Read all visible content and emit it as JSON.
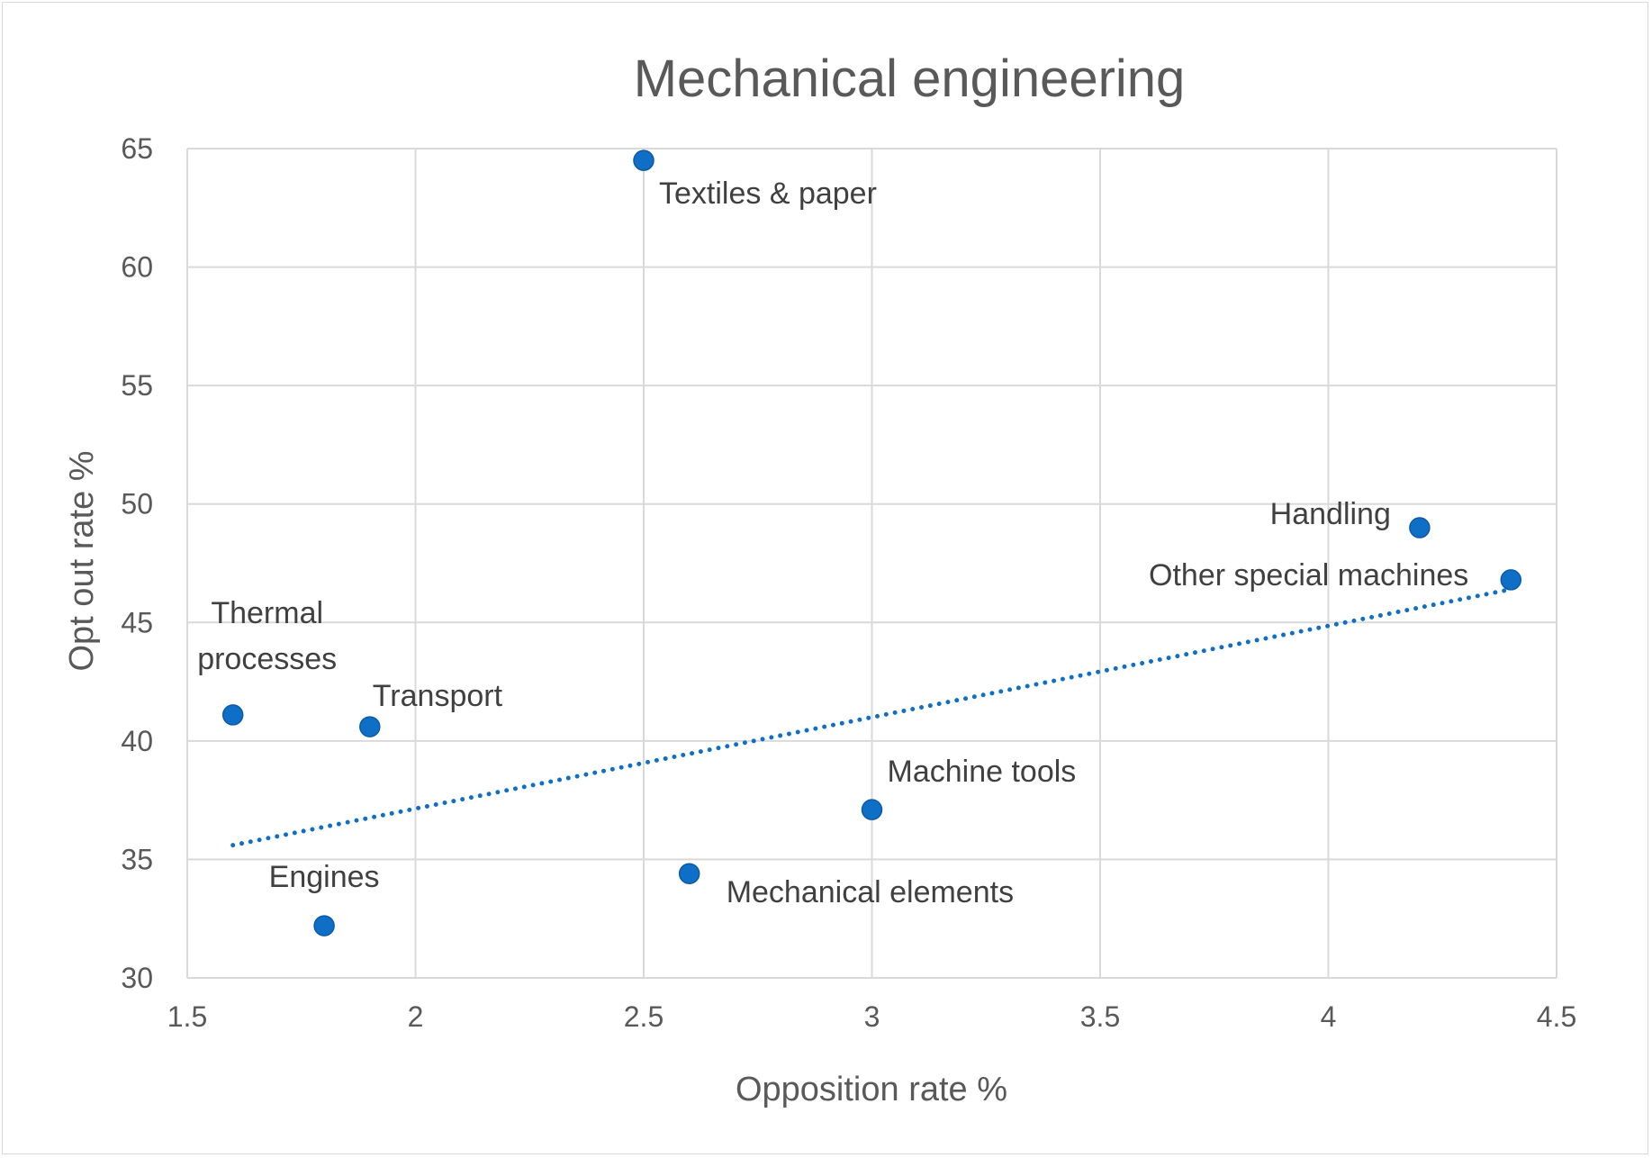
{
  "chart_data": {
    "type": "scatter",
    "title": "Mechanical engineering",
    "xlabel": "Opposition rate %",
    "ylabel": "Opt out rate %",
    "xlim": [
      1.5,
      4.5
    ],
    "ylim": [
      30,
      65
    ],
    "xticks": [
      1.5,
      2,
      2.5,
      3,
      3.5,
      4,
      4.5
    ],
    "xtick_labels": [
      "1.5",
      "2",
      "2.5",
      "3",
      "3.5",
      "4",
      "4.5"
    ],
    "yticks": [
      30,
      35,
      40,
      45,
      50,
      55,
      60,
      65
    ],
    "ytick_labels": [
      "30",
      "35",
      "40",
      "45",
      "50",
      "55",
      "60",
      "65"
    ],
    "grid": true,
    "marker_color": "#0f6fc6",
    "points": [
      {
        "label": "Textiles & paper",
        "x": 2.5,
        "y": 64.5
      },
      {
        "label": "Handling",
        "x": 4.2,
        "y": 49.0
      },
      {
        "label": "Other special machines",
        "x": 4.4,
        "y": 46.8
      },
      {
        "label": "Thermal",
        "label2": "processes",
        "x": 1.6,
        "y": 41.1
      },
      {
        "label": "Transport",
        "x": 1.9,
        "y": 40.6
      },
      {
        "label": "Machine tools",
        "x": 3.0,
        "y": 37.1
      },
      {
        "label": "Mechanical elements",
        "x": 2.6,
        "y": 34.4
      },
      {
        "label": "Engines",
        "x": 1.8,
        "y": 32.2
      }
    ],
    "trendline": {
      "type": "linear",
      "style": "dotted",
      "x": [
        1.6,
        4.4
      ],
      "y": [
        35.6,
        46.4
      ],
      "color": "#0f6fc6"
    }
  }
}
